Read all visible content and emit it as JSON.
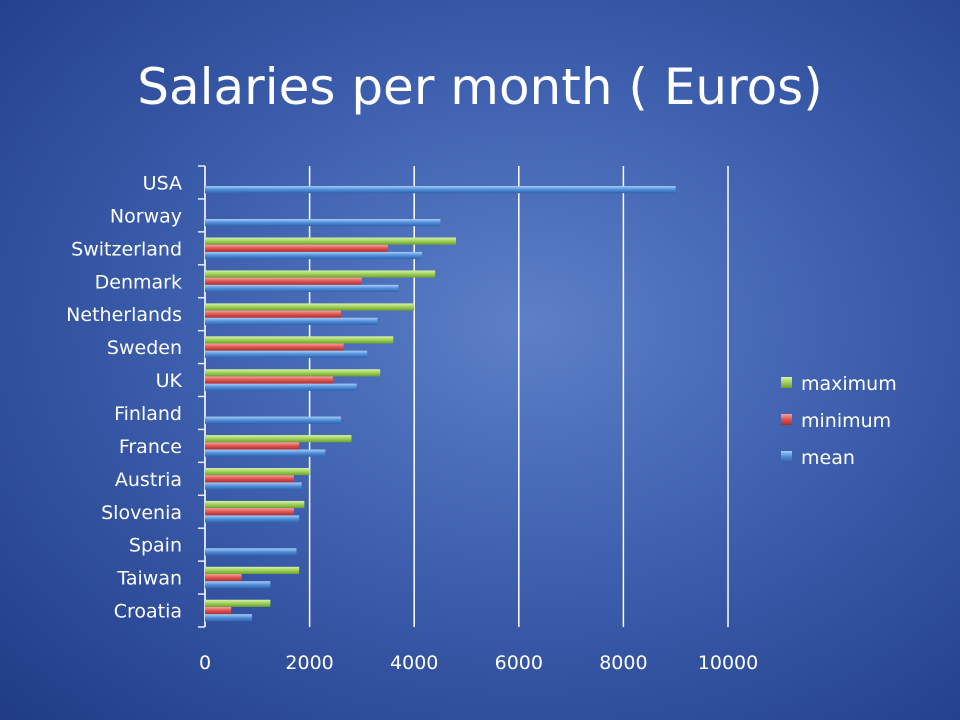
{
  "colors": {
    "maximum": "#9ed158",
    "minimum": "#e0524f",
    "mean": "#4f8edb",
    "grid": "#ffffff"
  },
  "chart_data": {
    "type": "bar",
    "orientation": "horizontal",
    "title": "Salaries per month ( Euros)",
    "categories": [
      "USA",
      "Norway",
      "Switzerland",
      "Denmark",
      "Netherlands",
      "Sweden",
      "UK",
      "Finland",
      "France",
      "Austria",
      "Slovenia",
      "Spain",
      "Taiwan",
      "Croatia"
    ],
    "series": [
      {
        "name": "maximum",
        "values": [
          null,
          null,
          4800,
          4400,
          4000,
          3600,
          3350,
          null,
          2800,
          2000,
          1900,
          null,
          1800,
          1250
        ]
      },
      {
        "name": "minimum",
        "values": [
          null,
          null,
          3500,
          3000,
          2600,
          2650,
          2450,
          null,
          1800,
          1700,
          1700,
          null,
          700,
          500
        ]
      },
      {
        "name": "mean",
        "values": [
          9000,
          4500,
          4150,
          3700,
          3300,
          3100,
          2900,
          2600,
          2300,
          1850,
          1800,
          1750,
          1250,
          900
        ]
      }
    ],
    "xlim": [
      0,
      10000
    ],
    "xticks": [
      "0",
      "2000",
      "4000",
      "6000",
      "8000",
      "10000"
    ],
    "grid": true,
    "legend": "right",
    "legend_order": [
      "maximum",
      "minimum",
      "mean"
    ]
  }
}
